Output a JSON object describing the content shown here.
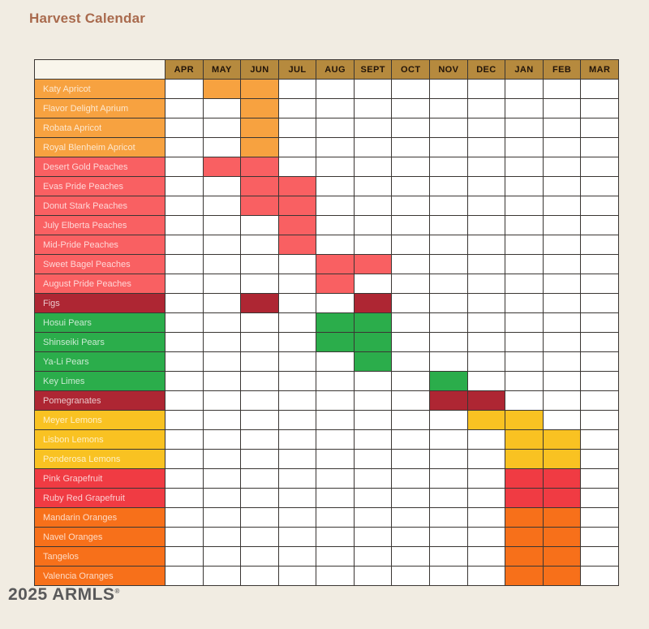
{
  "page": {
    "title": "Harvest Calendar",
    "title_color": "#A96A4D",
    "background": "#F1ECE2",
    "watermark": {
      "text": "2025 ARMLS",
      "reg_mark": "®",
      "color": "#4D4D4F"
    }
  },
  "chart_data": {
    "type": "heatmap",
    "title": "Harvest Calendar",
    "columns": [
      "APR",
      "MAY",
      "JUN",
      "JUL",
      "AUG",
      "SEPT",
      "OCT",
      "NOV",
      "DEC",
      "JAN",
      "FEB",
      "MAR"
    ],
    "header_bg": "#B68A3E",
    "header_text_color": "#211409",
    "grid_line_color": "#3A3633",
    "cell_bg": "#FFFFFF",
    "corner_cell_bg": "#F9F5EB",
    "label_text_color": "rgba(255,255,255,0.75)",
    "legend": "filled cell = harvest month",
    "rows": [
      {
        "label": "Katy Apricot",
        "color": "#F7A240",
        "harvest_months": [
          "MAY",
          "JUN"
        ]
      },
      {
        "label": "Flavor Delight Aprium",
        "color": "#F7A240",
        "harvest_months": [
          "JUN"
        ]
      },
      {
        "label": "Robata Apricot",
        "color": "#F7A240",
        "harvest_months": [
          "JUN"
        ]
      },
      {
        "label": "Royal Blenheim Apricot",
        "color": "#F7A240",
        "harvest_months": [
          "JUN"
        ]
      },
      {
        "label": "Desert Gold Peaches",
        "color": "#F96062",
        "harvest_months": [
          "MAY",
          "JUN"
        ]
      },
      {
        "label": "Evas Pride Peaches",
        "color": "#F96062",
        "harvest_months": [
          "JUN",
          "JUL"
        ]
      },
      {
        "label": "Donut Stark Peaches",
        "color": "#F96062",
        "harvest_months": [
          "JUN",
          "JUL"
        ]
      },
      {
        "label": "July Elberta Peaches",
        "color": "#F96062",
        "harvest_months": [
          "JUL"
        ]
      },
      {
        "label": "Mid-Pride Peaches",
        "color": "#F96062",
        "harvest_months": [
          "JUL"
        ]
      },
      {
        "label": "Sweet Bagel Peaches",
        "color": "#F96062",
        "harvest_months": [
          "AUG",
          "SEPT"
        ]
      },
      {
        "label": "August Pride Peaches",
        "color": "#F96062",
        "harvest_months": [
          "AUG"
        ]
      },
      {
        "label": "Figs",
        "color": "#AE2633",
        "harvest_months": [
          "JUN",
          "SEPT"
        ]
      },
      {
        "label": "Hosui Pears",
        "color": "#2BAD4B",
        "harvest_months": [
          "AUG",
          "SEPT"
        ]
      },
      {
        "label": "Shinseiki Pears",
        "color": "#2BAD4B",
        "harvest_months": [
          "AUG",
          "SEPT"
        ]
      },
      {
        "label": "Ya-Li Pears",
        "color": "#2BAD4B",
        "harvest_months": [
          "SEPT"
        ]
      },
      {
        "label": "Key Limes",
        "color": "#2BAD4B",
        "harvest_months": [
          "NOV"
        ]
      },
      {
        "label": "Pomegranates",
        "color": "#AE2633",
        "harvest_months": [
          "NOV",
          "DEC"
        ]
      },
      {
        "label": "Meyer Lemons",
        "color": "#F9C222",
        "harvest_months": [
          "DEC",
          "JAN"
        ]
      },
      {
        "label": "Lisbon Lemons",
        "color": "#F9C222",
        "harvest_months": [
          "JAN",
          "FEB"
        ]
      },
      {
        "label": "Ponderosa Lemons",
        "color": "#F9C222",
        "harvest_months": [
          "JAN",
          "FEB"
        ]
      },
      {
        "label": "Pink Grapefruit",
        "color": "#F03B43",
        "harvest_months": [
          "JAN",
          "FEB"
        ]
      },
      {
        "label": "Ruby Red Grapefruit",
        "color": "#F03B43",
        "harvest_months": [
          "JAN",
          "FEB"
        ]
      },
      {
        "label": "Mandarin Oranges",
        "color": "#F7701A",
        "harvest_months": [
          "JAN",
          "FEB"
        ]
      },
      {
        "label": "Navel Oranges",
        "color": "#F7701A",
        "harvest_months": [
          "JAN",
          "FEB"
        ]
      },
      {
        "label": "Tangelos",
        "color": "#F7701A",
        "harvest_months": [
          "JAN",
          "FEB"
        ]
      },
      {
        "label": "Valencia Oranges",
        "color": "#F7701A",
        "harvest_months": [
          "JAN",
          "FEB"
        ]
      }
    ]
  }
}
